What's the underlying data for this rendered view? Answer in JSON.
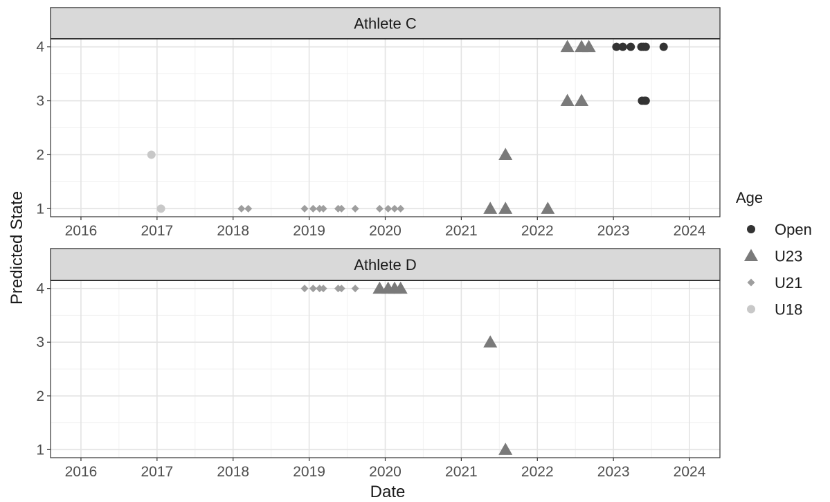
{
  "chart_data": {
    "type": "scatter",
    "xlabel": "Date",
    "ylabel": "Predicted State",
    "xlim": [
      2015.6,
      2024.4
    ],
    "ylim": [
      0.85,
      4.15
    ],
    "x_ticks": [
      "2016",
      "2017",
      "2018",
      "2019",
      "2020",
      "2021",
      "2022",
      "2023",
      "2024"
    ],
    "y_ticks": [
      "1",
      "2",
      "3",
      "4"
    ],
    "grid": true,
    "legend": {
      "title": "Age",
      "position": "right",
      "entries": [
        {
          "label": "Open",
          "shape": "circle",
          "color": "#333333"
        },
        {
          "label": "U23",
          "shape": "triangle",
          "color": "#7a7a7a"
        },
        {
          "label": "U21",
          "shape": "diamond",
          "color": "#9e9e9e"
        },
        {
          "label": "U18",
          "shape": "circle",
          "color": "#c8c8c8"
        }
      ]
    },
    "panels": [
      {
        "title": "Athlete C",
        "series": [
          {
            "name": "U18",
            "points": [
              {
                "x": "2016-12-05",
                "y": 2
              },
              {
                "x": "2017-01-20",
                "y": 1
              }
            ]
          },
          {
            "name": "U21",
            "points": [
              {
                "x": "2018-02-10",
                "y": 1
              },
              {
                "x": "2018-03-15",
                "y": 1
              },
              {
                "x": "2018-12-10",
                "y": 1
              },
              {
                "x": "2019-01-20",
                "y": 1
              },
              {
                "x": "2019-02-20",
                "y": 1
              },
              {
                "x": "2019-03-10",
                "y": 1
              },
              {
                "x": "2019-05-20",
                "y": 1
              },
              {
                "x": "2019-06-05",
                "y": 1
              },
              {
                "x": "2019-08-10",
                "y": 1
              },
              {
                "x": "2019-12-05",
                "y": 1
              },
              {
                "x": "2020-01-15",
                "y": 1
              },
              {
                "x": "2020-02-15",
                "y": 1
              },
              {
                "x": "2020-03-15",
                "y": 1
              }
            ]
          },
          {
            "name": "U23",
            "points": [
              {
                "x": "2021-05-20",
                "y": 1
              },
              {
                "x": "2021-08-01",
                "y": 1
              },
              {
                "x": "2021-08-01",
                "y": 2
              },
              {
                "x": "2022-02-20",
                "y": 1
              },
              {
                "x": "2022-05-25",
                "y": 3
              },
              {
                "x": "2022-05-25",
                "y": 4
              },
              {
                "x": "2022-08-01",
                "y": 3
              },
              {
                "x": "2022-08-01",
                "y": 4
              },
              {
                "x": "2022-09-05",
                "y": 4
              }
            ]
          },
          {
            "name": "Open",
            "points": [
              {
                "x": "2023-01-15",
                "y": 4
              },
              {
                "x": "2023-02-15",
                "y": 4
              },
              {
                "x": "2023-03-25",
                "y": 4
              },
              {
                "x": "2023-05-15",
                "y": 4
              },
              {
                "x": "2023-05-25",
                "y": 4
              },
              {
                "x": "2023-06-05",
                "y": 4
              },
              {
                "x": "2023-05-18",
                "y": 3
              },
              {
                "x": "2023-05-30",
                "y": 3
              },
              {
                "x": "2023-06-05",
                "y": 3
              },
              {
                "x": "2023-08-30",
                "y": 4
              }
            ]
          }
        ]
      },
      {
        "title": "Athlete D",
        "series": [
          {
            "name": "U21",
            "points": [
              {
                "x": "2018-12-10",
                "y": 4
              },
              {
                "x": "2019-01-20",
                "y": 4
              },
              {
                "x": "2019-02-20",
                "y": 4
              },
              {
                "x": "2019-03-10",
                "y": 4
              },
              {
                "x": "2019-05-20",
                "y": 4
              },
              {
                "x": "2019-06-05",
                "y": 4
              },
              {
                "x": "2019-08-10",
                "y": 4
              }
            ]
          },
          {
            "name": "U23",
            "points": [
              {
                "x": "2019-12-05",
                "y": 4
              },
              {
                "x": "2020-01-15",
                "y": 4
              },
              {
                "x": "2020-02-15",
                "y": 4
              },
              {
                "x": "2020-03-15",
                "y": 4
              },
              {
                "x": "2021-05-20",
                "y": 3
              },
              {
                "x": "2021-08-01",
                "y": 1
              }
            ]
          }
        ]
      }
    ]
  }
}
